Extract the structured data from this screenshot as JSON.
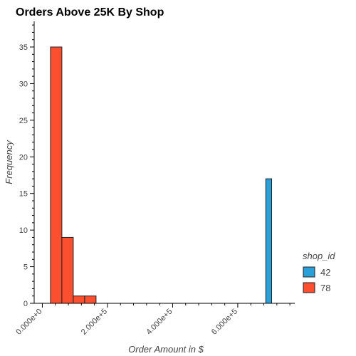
{
  "chart_data": {
    "type": "bar",
    "title": "Orders Above 25K By Shop",
    "xlabel": "Order Amount in $",
    "ylabel": "Frequency",
    "xlim": [
      -25000,
      775000
    ],
    "ylim": [
      0,
      38.5
    ],
    "x_ticks": [
      0,
      200000,
      400000,
      600000
    ],
    "x_tick_labels": [
      "0.000e+0",
      "2.000e+5",
      "4.000e+5",
      "6.000e+5"
    ],
    "y_ticks": [
      0,
      5,
      10,
      15,
      20,
      25,
      30,
      35
    ],
    "grid": false,
    "legend": {
      "title": "shop_id",
      "placement": "bottom-right"
    },
    "series": [
      {
        "name": "42",
        "color": "#2a9fd8",
        "bins": [
          {
            "x0": 686000,
            "x1": 704000,
            "count": 17
          }
        ]
      },
      {
        "name": "78",
        "color": "#fc4f30",
        "bins": [
          {
            "x0": 25000,
            "x1": 60000,
            "count": 35
          },
          {
            "x0": 60000,
            "x1": 95000,
            "count": 9
          },
          {
            "x0": 95000,
            "x1": 130000,
            "count": 1
          },
          {
            "x0": 130000,
            "x1": 165000,
            "count": 1
          }
        ]
      }
    ]
  }
}
